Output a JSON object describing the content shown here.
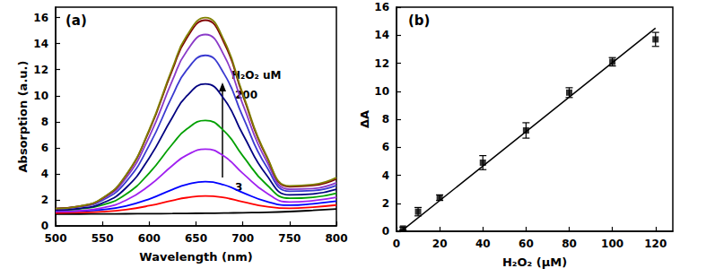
{
  "chart_data": [
    {
      "type": "line",
      "title": "(a)",
      "x_label": "Wavelength (nm)",
      "y_label": "Absorption (a.u.)",
      "annotations": [
        "H₂O₂ uM",
        "200",
        "3"
      ],
      "x": [
        500,
        525,
        550,
        575,
        600,
        625,
        640,
        660,
        680,
        700,
        725,
        750,
        775,
        800
      ],
      "series": [
        {
          "color": "#000000",
          "values": [
            0.9,
            0.91,
            0.92,
            0.93,
            0.94,
            0.95,
            0.96,
            0.97,
            0.99,
            1.01,
            1.04,
            1.1,
            1.19,
            1.3
          ]
        },
        {
          "color": "#ff0000",
          "values": [
            1.0,
            1.03,
            1.09,
            1.25,
            1.55,
            1.96,
            2.17,
            2.3,
            2.17,
            1.85,
            1.49,
            1.35,
            1.44,
            1.6
          ]
        },
        {
          "color": "#0000ff",
          "values": [
            1.1,
            1.14,
            1.25,
            1.53,
            2.06,
            2.8,
            3.17,
            3.4,
            3.15,
            2.56,
            1.88,
            1.59,
            1.7,
            1.9
          ]
        },
        {
          "color": "#a020f0",
          "values": [
            1.11,
            1.17,
            1.39,
            1.96,
            3.1,
            4.65,
            5.43,
            5.9,
            5.35,
            4.04,
            2.55,
            1.83,
            1.94,
            2.2
          ]
        },
        {
          "color": "#00a000",
          "values": [
            1.21,
            1.3,
            1.6,
            2.42,
            4.06,
            6.3,
            7.43,
            8.1,
            7.29,
            5.38,
            3.2,
            2.12,
            2.2,
            2.51
          ]
        },
        {
          "color": "#000080",
          "values": [
            1.22,
            1.34,
            1.75,
            2.91,
            5.22,
            8.37,
            9.97,
            10.9,
            9.74,
            7.04,
            3.94,
            2.38,
            2.45,
            2.81
          ]
        },
        {
          "color": "#3a3ad0",
          "values": [
            1.32,
            1.46,
            1.96,
            3.37,
            6.19,
            10.03,
            11.97,
            13.1,
            11.68,
            8.39,
            4.59,
            2.66,
            2.71,
            3.11
          ]
        },
        {
          "color": "#8a3ac8",
          "values": [
            1.33,
            1.48,
            2.05,
            3.65,
            6.85,
            11.21,
            13.41,
            14.7,
            13.09,
            9.34,
            5.03,
            2.82,
            2.87,
            3.31
          ]
        },
        {
          "color": "#800000",
          "values": [
            1.33,
            1.5,
            2.12,
            3.85,
            7.31,
            12.02,
            14.41,
            15.8,
            14.06,
            10.02,
            5.37,
            3.01,
            3.1,
            3.61
          ]
        },
        {
          "color": "#808000",
          "values": [
            1.33,
            1.51,
            2.13,
            3.89,
            7.39,
            12.17,
            14.59,
            16.0,
            14.24,
            10.15,
            5.45,
            3.07,
            3.17,
            3.71
          ]
        }
      ],
      "xlim": [
        500,
        800
      ],
      "xticks": [
        500,
        550,
        600,
        650,
        700,
        750,
        800
      ],
      "ylim": [
        0,
        16.8
      ],
      "yticks": [
        0,
        2,
        4,
        6,
        8,
        10,
        12,
        14,
        16
      ],
      "grid": false
    },
    {
      "type": "scatter",
      "title": "(b)",
      "x_label": "H₂O₂ (μM)",
      "y_label": "ΔA",
      "series": [
        {
          "type": "scatter",
          "marker": "square",
          "color": "#000000",
          "x": [
            3,
            10,
            20,
            40,
            60,
            80,
            100,
            120
          ],
          "values": [
            0.2,
            1.4,
            2.4,
            4.9,
            7.2,
            9.9,
            12.1,
            13.7
          ],
          "errors": [
            0.1,
            0.3,
            0.2,
            0.5,
            0.55,
            0.35,
            0.3,
            0.5
          ]
        },
        {
          "type": "line",
          "line_style": "solid",
          "color": "#000000",
          "x": [
            3,
            120
          ],
          "values": [
            0.1,
            14.5
          ]
        }
      ],
      "xlim": [
        0,
        128
      ],
      "xticks": [
        0,
        20,
        40,
        60,
        80,
        100,
        120
      ],
      "ylim": [
        0,
        16
      ],
      "yticks": [
        0,
        2,
        4,
        6,
        8,
        10,
        12,
        14,
        16
      ],
      "grid": false
    }
  ]
}
